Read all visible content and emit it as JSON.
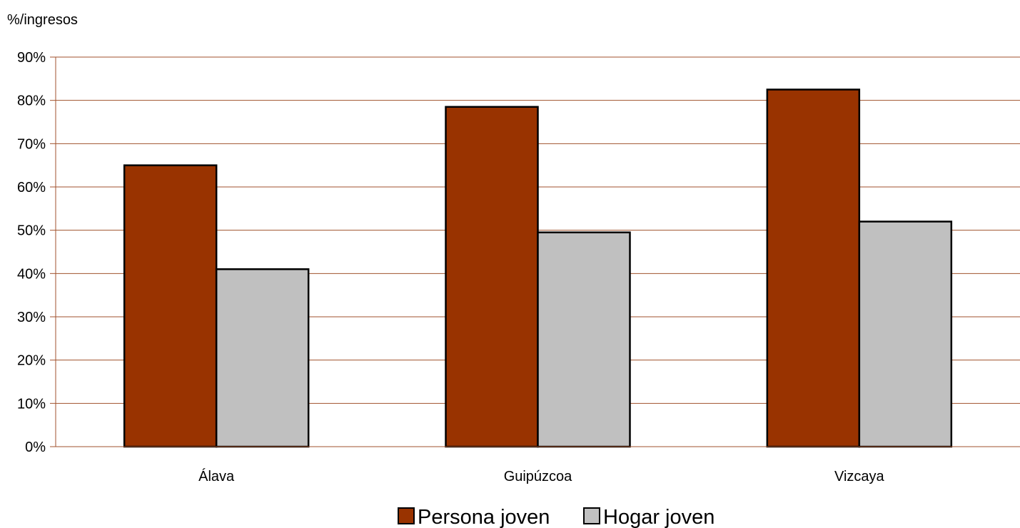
{
  "chart_data": {
    "type": "bar",
    "title": "",
    "ylabel": "%/ingresos",
    "xlabel": "",
    "categories": [
      "Álava",
      "Guipúzcoa",
      "Vizcaya"
    ],
    "series": [
      {
        "name": "Persona joven",
        "color": "#993300",
        "values": [
          65,
          78.5,
          82.5
        ]
      },
      {
        "name": "Hogar joven",
        "color": "#c0c0c0",
        "values": [
          41,
          49.5,
          52
        ]
      }
    ],
    "ylim": [
      0,
      90
    ],
    "yticks": [
      0,
      10,
      20,
      30,
      40,
      50,
      60,
      70,
      80,
      90
    ],
    "ytick_suffix": "%",
    "grid": true,
    "grid_color": "#a0522d",
    "legend": "bottom-center"
  }
}
